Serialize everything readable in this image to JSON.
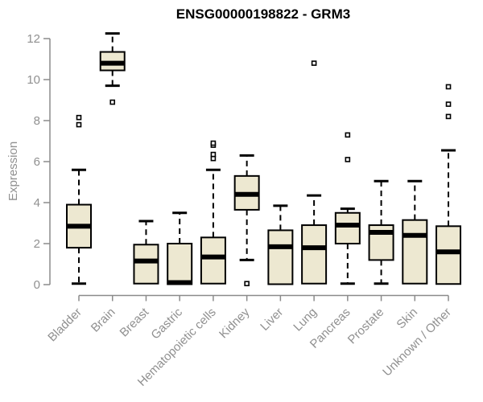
{
  "chart_data": {
    "type": "boxplot",
    "title": "ENSG00000198822 - GRM3",
    "ylabel": "Expression",
    "xlabel": "",
    "ylim": [
      0,
      12.4
    ],
    "y_ticks": [
      0,
      2,
      4,
      6,
      8,
      10,
      12
    ],
    "grid": false,
    "legend": "none",
    "categories": [
      "Bladder",
      "Brain",
      "Breast",
      "Gastric",
      "Hematopoietic cells",
      "Kidney",
      "Liver",
      "Lung",
      "Pancreas",
      "Prostate",
      "Skin",
      "Unknown / Other"
    ],
    "series": [
      {
        "name": "Bladder",
        "whisker_low": 0.05,
        "q1": 1.8,
        "median": 2.85,
        "q3": 3.9,
        "whisker_high": 5.6,
        "outliers": [
          7.8,
          8.15
        ]
      },
      {
        "name": "Brain",
        "whisker_low": 9.7,
        "q1": 10.45,
        "median": 10.8,
        "q3": 11.35,
        "whisker_high": 12.25,
        "outliers": [
          8.9
        ]
      },
      {
        "name": "Breast",
        "whisker_low": 0.05,
        "q1": 0.05,
        "median": 1.15,
        "q3": 1.95,
        "whisker_high": 3.1,
        "outliers": []
      },
      {
        "name": "Gastric",
        "whisker_low": 0.02,
        "q1": 0.02,
        "median": 0.1,
        "q3": 2.0,
        "whisker_high": 3.5,
        "outliers": []
      },
      {
        "name": "Hematopoietic cells",
        "whisker_low": 0.05,
        "q1": 0.05,
        "median": 1.35,
        "q3": 2.3,
        "whisker_high": 5.6,
        "outliers": [
          6.15,
          6.35,
          6.8,
          6.9
        ]
      },
      {
        "name": "Kidney",
        "whisker_low": 1.2,
        "q1": 3.65,
        "median": 4.4,
        "q3": 5.3,
        "whisker_high": 6.3,
        "outliers": [
          0.05
        ]
      },
      {
        "name": "Liver",
        "whisker_low": 0.02,
        "q1": 0.02,
        "median": 1.85,
        "q3": 2.65,
        "whisker_high": 3.85,
        "outliers": []
      },
      {
        "name": "Lung",
        "whisker_low": 0.05,
        "q1": 0.05,
        "median": 1.8,
        "q3": 2.9,
        "whisker_high": 4.35,
        "outliers": [
          10.8
        ]
      },
      {
        "name": "Pancreas",
        "whisker_low": 0.05,
        "q1": 2.0,
        "median": 2.9,
        "q3": 3.5,
        "whisker_high": 3.7,
        "outliers": [
          6.1,
          7.3
        ]
      },
      {
        "name": "Prostate",
        "whisker_low": 0.05,
        "q1": 1.2,
        "median": 2.55,
        "q3": 2.9,
        "whisker_high": 5.05,
        "outliers": []
      },
      {
        "name": "Skin",
        "whisker_low": 0.05,
        "q1": 0.05,
        "median": 2.4,
        "q3": 3.15,
        "whisker_high": 5.05,
        "outliers": []
      },
      {
        "name": "Unknown / Other",
        "whisker_low": 0.03,
        "q1": 0.03,
        "median": 1.6,
        "q3": 2.85,
        "whisker_high": 6.55,
        "outliers": [
          8.2,
          8.8,
          9.65
        ]
      }
    ],
    "colors": {
      "box_fill": "#EDE8D1",
      "box_stroke": "#000000",
      "median": "#000000",
      "whisker": "#000000",
      "axis": "#8B8B8B",
      "tick_label": "#909090",
      "title": "#000000",
      "background": "#FFFFFF"
    }
  }
}
